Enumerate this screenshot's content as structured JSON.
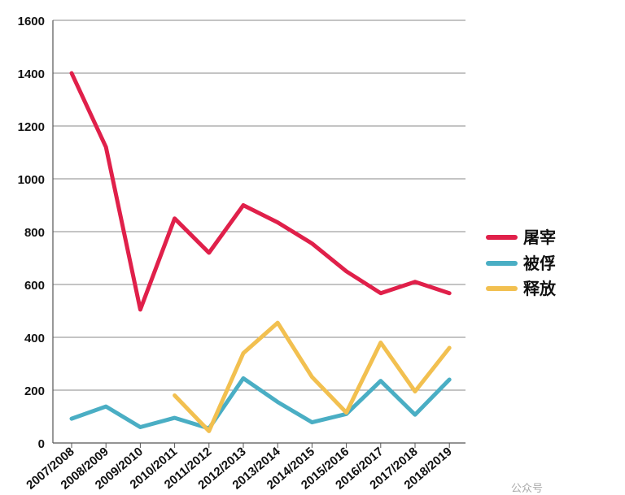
{
  "chart_data": {
    "type": "line",
    "categories": [
      "2007/2008",
      "2008/2009",
      "2009/2010",
      "2010/2011",
      "2011/2012",
      "2012/2013",
      "2013/2014",
      "2014/2015",
      "2015/2016",
      "2016/2017",
      "2017/2018",
      "2018/2019"
    ],
    "y_ticks": [
      "0",
      "200",
      "400",
      "600",
      "800",
      "1000",
      "1200",
      "1400",
      "1600"
    ],
    "ylim": [
      0,
      1600
    ],
    "grid": true,
    "legend_position": "right",
    "series": [
      {
        "name": "屠宰",
        "color": "#e0204a",
        "values": [
          1400,
          1120,
          505,
          850,
          720,
          900,
          835,
          755,
          650,
          567,
          610,
          567
        ]
      },
      {
        "name": "被俘",
        "color": "#4aaec4",
        "values": [
          92,
          138,
          60,
          95,
          55,
          245,
          155,
          78,
          110,
          235,
          107,
          240
        ]
      },
      {
        "name": "释放",
        "color": "#f2c050",
        "values": [
          null,
          null,
          null,
          180,
          45,
          340,
          455,
          250,
          115,
          380,
          195,
          360
        ]
      }
    ]
  },
  "watermark": "公众号"
}
